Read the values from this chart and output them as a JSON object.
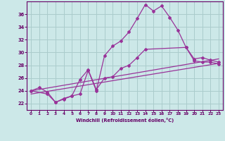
{
  "xlabel": "Windchill (Refroidissement éolien,°C)",
  "bg_color": "#cce8e8",
  "grid_color": "#aacccc",
  "line_color": "#993399",
  "x_ticks": [
    0,
    1,
    2,
    3,
    4,
    5,
    6,
    7,
    8,
    9,
    10,
    11,
    12,
    13,
    14,
    15,
    16,
    17,
    18,
    19,
    20,
    21,
    22,
    23
  ],
  "xlim": [
    -0.5,
    23.5
  ],
  "ylim": [
    21.0,
    38.0
  ],
  "yticks": [
    22,
    24,
    26,
    28,
    30,
    32,
    34,
    36
  ],
  "line1_x": [
    0,
    1,
    2,
    3,
    4,
    5,
    6,
    7,
    8,
    9,
    10,
    11,
    12,
    13,
    14,
    15,
    16,
    17,
    18,
    19,
    20,
    21,
    22,
    23
  ],
  "line1_y": [
    24.0,
    24.5,
    23.8,
    22.2,
    22.7,
    23.2,
    23.5,
    27.2,
    24.0,
    29.5,
    31.0,
    31.8,
    33.2,
    35.3,
    37.5,
    36.5,
    37.3,
    35.5,
    33.5,
    30.8,
    28.7,
    28.5,
    28.5,
    28.2
  ],
  "line2_x": [
    0,
    2,
    3,
    4,
    5,
    6,
    7,
    8,
    9,
    10,
    11,
    12,
    13,
    14,
    19,
    20,
    21,
    22,
    23
  ],
  "line2_y": [
    24.0,
    23.5,
    22.2,
    22.8,
    23.2,
    25.8,
    27.3,
    24.2,
    26.0,
    26.2,
    27.5,
    28.0,
    29.2,
    30.5,
    30.8,
    29.0,
    29.2,
    28.8,
    28.5
  ],
  "line3_x": [
    0,
    23
  ],
  "line3_y": [
    24.0,
    29.0
  ],
  "line4_x": [
    0,
    23
  ],
  "line4_y": [
    23.5,
    28.3
  ]
}
